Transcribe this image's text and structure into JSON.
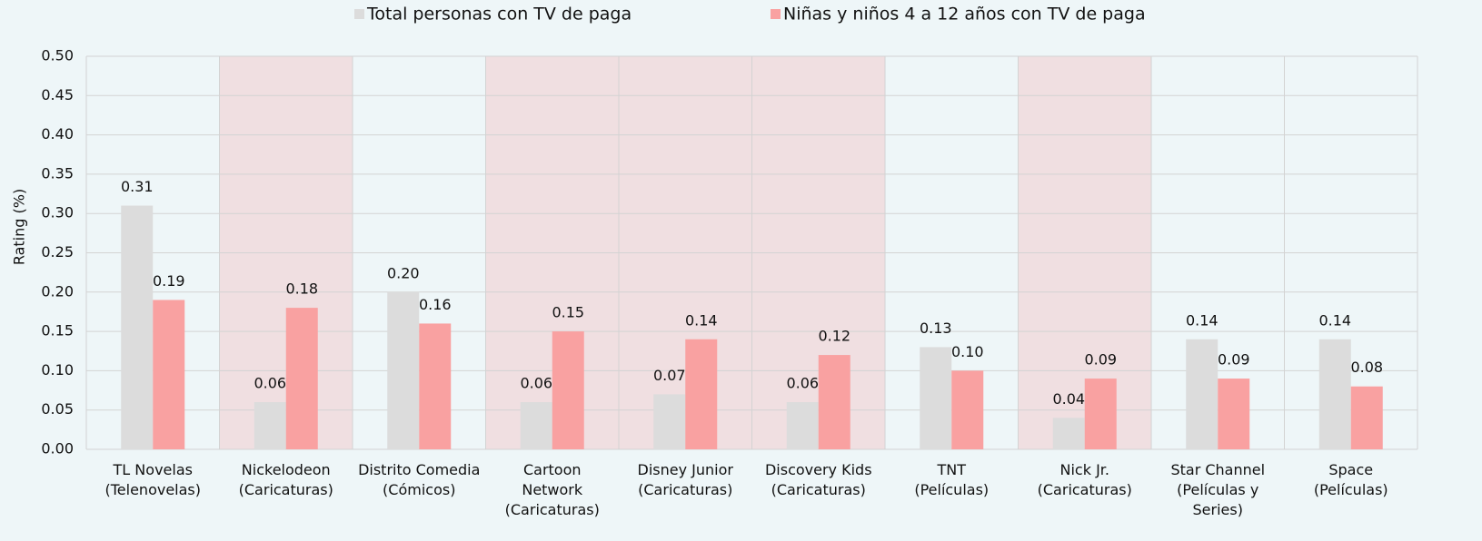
{
  "chart_data": {
    "type": "bar",
    "y_label": "Rating (%)",
    "categories": [
      "TL Novelas\n(Telenovelas)",
      "Nickelodeon\n(Caricaturas)",
      "Distrito Comedia\n(Cómicos)",
      "Cartoon\nNetwork\n(Caricaturas)",
      "Disney Junior\n(Caricaturas)",
      "Discovery Kids\n(Caricaturas)",
      "TNT\n(Películas)",
      "Nick Jr.\n(Caricaturas)",
      "Star Channel\n(Películas y\nSeries)",
      "Space\n(Películas)"
    ],
    "highlighted": [
      false,
      true,
      false,
      true,
      true,
      true,
      false,
      true,
      false,
      false
    ],
    "highlight_color": "#f0dfe1",
    "series": [
      {
        "name": "Total personas con TV de paga",
        "color": "#dcdcdc",
        "values": [
          0.31,
          0.06,
          0.2,
          0.06,
          0.07,
          0.06,
          0.13,
          0.04,
          0.14,
          0.14
        ],
        "value_labels": [
          "0.31",
          "0.06",
          "0.20",
          "0.06",
          "0.07",
          "0.06",
          "0.13",
          "0.04",
          "0.14",
          "0.14"
        ]
      },
      {
        "name": "Niñas y niños 4 a 12 años con TV de paga",
        "color": "#f9a1a1",
        "values": [
          0.19,
          0.18,
          0.16,
          0.15,
          0.14,
          0.12,
          0.1,
          0.09,
          0.09,
          0.08
        ],
        "value_labels": [
          "0.19",
          "0.18",
          "0.16",
          "0.15",
          "0.14",
          "0.12",
          "0.10",
          "0.09",
          "0.09",
          "0.08"
        ]
      }
    ],
    "ylim": [
      0,
      0.5
    ],
    "yticks": [
      {
        "value": 0,
        "label": "0.00"
      },
      0.05,
      {
        "value": 0.1,
        "label": "0.10"
      },
      0.15,
      {
        "value": 0.2,
        "label": "0.20"
      },
      0.25,
      {
        "value": 0.3,
        "label": "0.30"
      },
      0.35,
      {
        "value": 0.4,
        "label": "0.40"
      },
      0.45,
      {
        "value": 0.5,
        "label": "0.50"
      }
    ],
    "grid": true,
    "legend": "top"
  }
}
